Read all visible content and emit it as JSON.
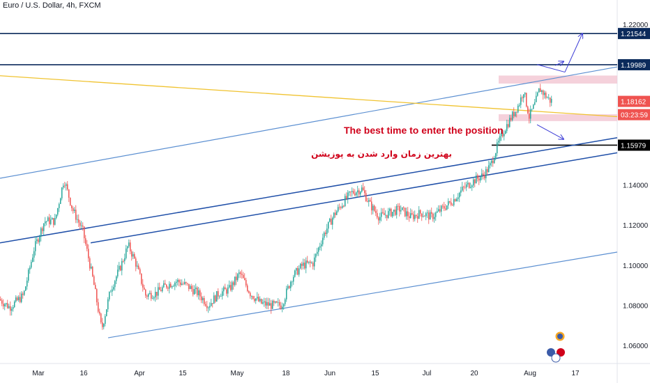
{
  "header": {
    "symbol_line": "Euro / U.S. Dollar, 4h, FXCM"
  },
  "annotations": {
    "english": "The best time to enter the position",
    "persian": "بهترین زمان وارد شدن به پوزیشن"
  },
  "colors": {
    "up": "#26a69a",
    "down": "#ef5350",
    "channel_light": "#5b8fd1",
    "channel_dark": "#1f4fa8",
    "yellow": "#f0c330",
    "navy": "#0b2a5b",
    "zone": "#f2c6d2",
    "arrow": "#3b3bd6",
    "label_red": "#d0021b",
    "price_red": "#ef5350"
  },
  "chart_data": {
    "type": "candlestick",
    "title": "Euro / U.S. Dollar, 4h, FXCM",
    "y_axis": {
      "ylim": [
        1.053,
        1.2245
      ],
      "ticks": [
        {
          "value": 1.06,
          "label": "1.06000"
        },
        {
          "value": 1.08,
          "label": "1.08000"
        },
        {
          "value": 1.1,
          "label": "1.10000"
        },
        {
          "value": 1.12,
          "label": "1.12000"
        },
        {
          "value": 1.14,
          "label": "1.14000"
        },
        {
          "value": 1.22,
          "label": "1.22000"
        }
      ]
    },
    "x_axis": {
      "ticks": [
        "Mar",
        "16",
        "Apr",
        "15",
        "May",
        "18",
        "Jun",
        "15",
        "Jul",
        "20",
        "Aug",
        "17"
      ],
      "tick_index": [
        55,
        120,
        200,
        262,
        340,
        410,
        473,
        538,
        612,
        680,
        760,
        825
      ]
    },
    "price_labels": [
      {
        "value": 1.21544,
        "label": "1.21544",
        "style": "navy"
      },
      {
        "value": 1.19989,
        "label": "1.19989",
        "style": "navy"
      },
      {
        "value": 1.18162,
        "label": "1.18162",
        "style": "red"
      },
      {
        "value": 1.175,
        "label": "03:23:59",
        "style": "red"
      },
      {
        "value": 1.15979,
        "label": "1.15979",
        "style": "black"
      }
    ],
    "candle_anchors": [
      [
        0,
        1.083
      ],
      [
        15,
        1.079
      ],
      [
        35,
        1.085
      ],
      [
        50,
        1.108
      ],
      [
        65,
        1.122
      ],
      [
        80,
        1.122
      ],
      [
        93,
        1.143
      ],
      [
        105,
        1.128
      ],
      [
        120,
        1.117
      ],
      [
        135,
        1.092
      ],
      [
        147,
        1.068
      ],
      [
        160,
        1.088
      ],
      [
        175,
        1.1
      ],
      [
        185,
        1.11
      ],
      [
        195,
        1.102
      ],
      [
        210,
        1.085
      ],
      [
        225,
        1.086
      ],
      [
        240,
        1.09
      ],
      [
        255,
        1.092
      ],
      [
        268,
        1.09
      ],
      [
        285,
        1.086
      ],
      [
        300,
        1.08
      ],
      [
        315,
        1.086
      ],
      [
        330,
        1.088
      ],
      [
        345,
        1.096
      ],
      [
        360,
        1.086
      ],
      [
        375,
        1.081
      ],
      [
        390,
        1.08
      ],
      [
        405,
        1.08
      ],
      [
        420,
        1.094
      ],
      [
        435,
        1.1
      ],
      [
        450,
        1.101
      ],
      [
        465,
        1.115
      ],
      [
        480,
        1.125
      ],
      [
        495,
        1.132
      ],
      [
        505,
        1.136
      ],
      [
        520,
        1.138
      ],
      [
        532,
        1.13
      ],
      [
        545,
        1.124
      ],
      [
        560,
        1.126
      ],
      [
        575,
        1.128
      ],
      [
        590,
        1.124
      ],
      [
        605,
        1.126
      ],
      [
        620,
        1.124
      ],
      [
        635,
        1.128
      ],
      [
        650,
        1.132
      ],
      [
        665,
        1.138
      ],
      [
        680,
        1.142
      ],
      [
        695,
        1.145
      ],
      [
        705,
        1.15
      ],
      [
        715,
        1.16
      ],
      [
        725,
        1.168
      ],
      [
        735,
        1.174
      ],
      [
        745,
        1.18
      ],
      [
        752,
        1.187
      ],
      [
        760,
        1.174
      ],
      [
        768,
        1.18
      ],
      [
        775,
        1.188
      ],
      [
        782,
        1.185
      ],
      [
        790,
        1.182
      ]
    ],
    "levels": [
      {
        "name": "resistance-2",
        "value": 1.21544
      },
      {
        "name": "resistance-1",
        "value": 1.19989
      },
      {
        "name": "support",
        "value": 1.15979,
        "from_index": 705
      }
    ],
    "zones": [
      {
        "name": "upper-zone",
        "from_index": 715,
        "to_index": 885,
        "low": 1.1905,
        "high": 1.1945
      },
      {
        "name": "lower-zone",
        "from_index": 715,
        "to_index": 885,
        "low": 1.1718,
        "high": 1.1752
      }
    ],
    "trendlines": [
      {
        "name": "channel-upper",
        "style": "light",
        "p1": [
          0,
          1.1433
        ],
        "p2": [
          885,
          1.1988
        ]
      },
      {
        "name": "channel-mid-upper",
        "style": "dark",
        "p1": [
          0,
          1.1111
        ],
        "p2": [
          885,
          1.1635
        ]
      },
      {
        "name": "channel-mid-lower",
        "style": "dark",
        "p1": [
          130,
          1.1111
        ],
        "p2": [
          885,
          1.156
        ]
      },
      {
        "name": "channel-lower",
        "style": "light",
        "p1": [
          155,
          1.0638
        ],
        "p2": [
          885,
          1.1065
        ]
      },
      {
        "name": "yellow-line",
        "style": "yellow",
        "p1": [
          0,
          1.1944
        ],
        "p2": [
          885,
          1.174
        ]
      }
    ],
    "arrows": [
      {
        "name": "arrow-up-1",
        "from": [
          770,
          1.2
        ],
        "to": [
          810,
          1.1962
        ]
      },
      {
        "name": "arrow-up-2",
        "from": [
          810,
          1.1962
        ],
        "to": [
          835,
          1.2154
        ]
      },
      {
        "name": "arrow-down-1",
        "from": [
          770,
          1.17
        ],
        "to": [
          808,
          1.1628
        ]
      }
    ]
  }
}
